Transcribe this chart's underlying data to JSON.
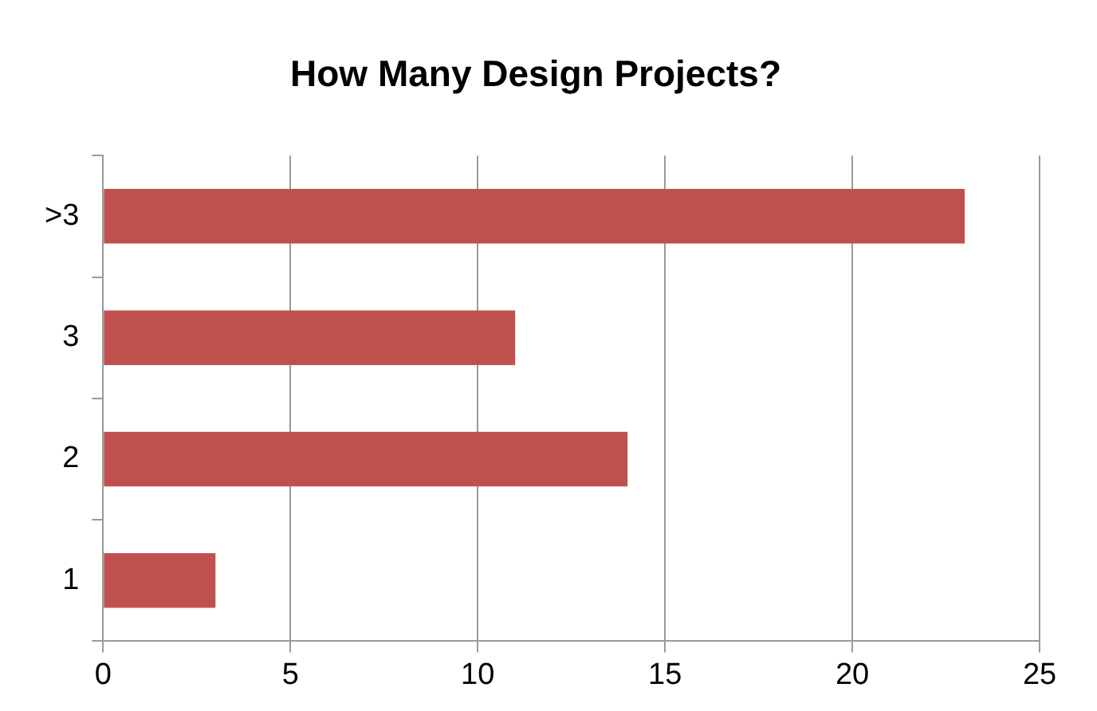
{
  "chart_data": {
    "type": "bar",
    "orientation": "horizontal",
    "title": "How Many Design Projects?",
    "categories": [
      ">3",
      "3",
      "2",
      "1"
    ],
    "values": [
      23,
      11,
      14,
      3
    ],
    "color": "#c0504d",
    "xlim": [
      0,
      25
    ],
    "xticks": [
      0,
      5,
      10,
      15,
      20,
      25
    ],
    "grid": "x",
    "legend": false
  }
}
